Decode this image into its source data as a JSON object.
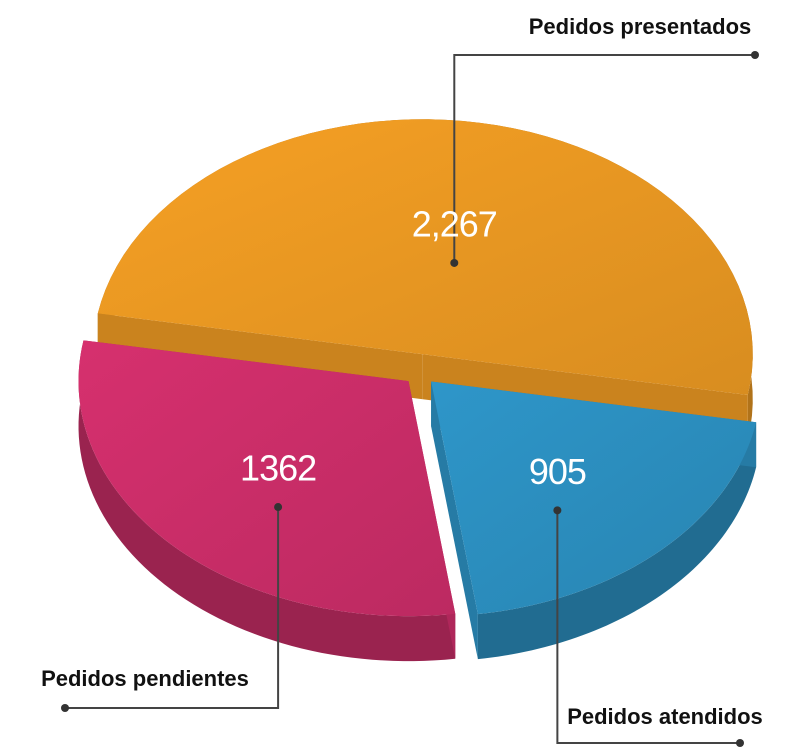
{
  "chart_data": {
    "type": "pie",
    "categories": [
      "Pedidos presentados",
      "Pedidos atendidos",
      "Pedidos pendientes"
    ],
    "values": [
      2267,
      905,
      1362
    ],
    "value_labels": [
      "2,267",
      "905",
      "1362"
    ],
    "colors": [
      "#f6a024",
      "#2e96c9",
      "#d6306e"
    ]
  }
}
